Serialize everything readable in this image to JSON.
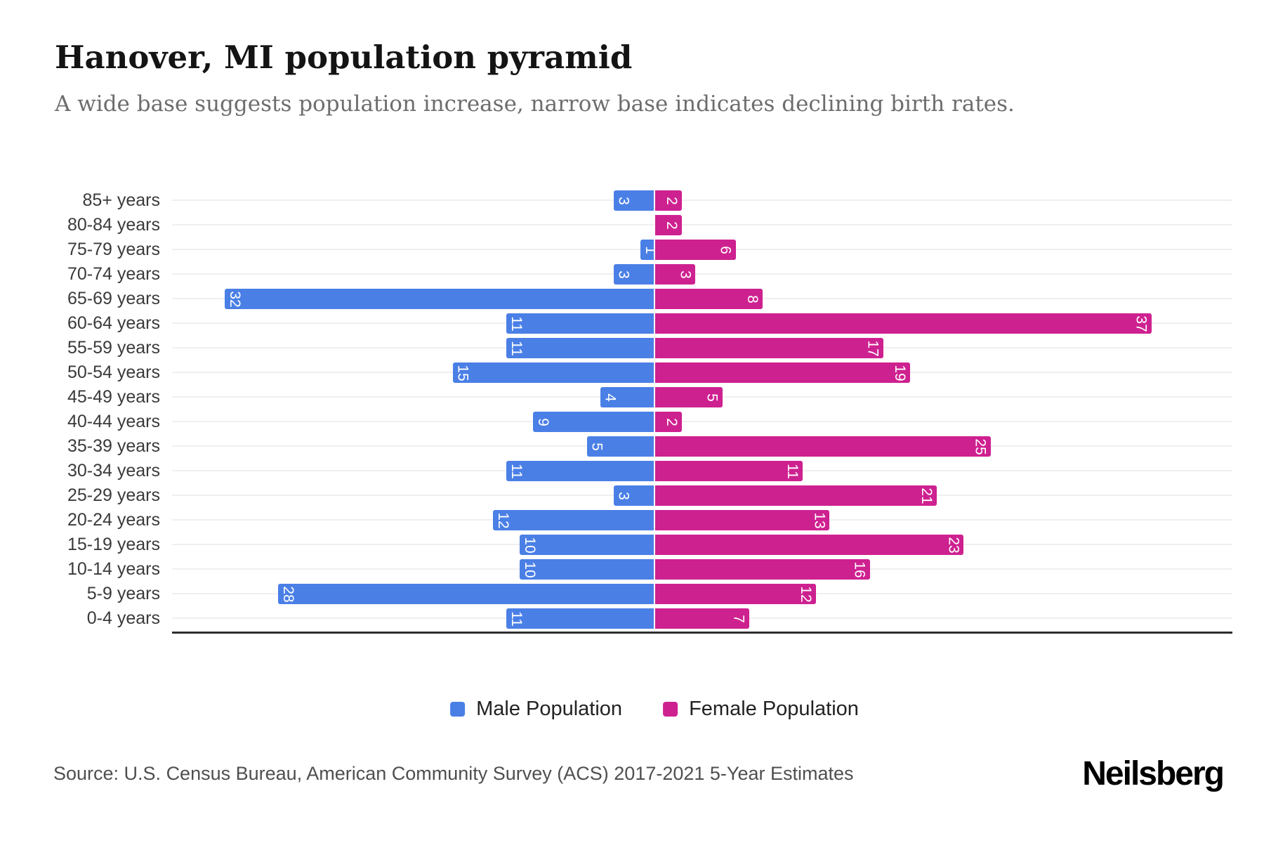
{
  "header": {
    "title": "Hanover, MI population pyramid",
    "subtitle": "A wide base suggests population increase, narrow base indicates declining birth rates."
  },
  "chart_data": {
    "type": "bar",
    "variant": "population-pyramid-horizontal",
    "title": "Hanover, MI population pyramid",
    "xlabel": "",
    "ylabel": "",
    "grid": "horizontal-light",
    "value_labels": "white, rotated 90deg, at outer tip of each bar",
    "categories": [
      "85+ years",
      "80-84 years",
      "75-79 years",
      "70-74 years",
      "65-69 years",
      "60-64 years",
      "55-59 years",
      "50-54 years",
      "45-49 years",
      "40-44 years",
      "35-39 years",
      "30-34 years",
      "25-29 years",
      "20-24 years",
      "15-19 years",
      "10-14 years",
      "5-9 years",
      "0-4 years"
    ],
    "series": [
      {
        "name": "Male Population",
        "color": "#4a7fe6",
        "direction": "left",
        "values": [
          3,
          0,
          1,
          3,
          32,
          11,
          11,
          15,
          4,
          9,
          5,
          11,
          3,
          12,
          10,
          10,
          28,
          11
        ]
      },
      {
        "name": "Female Population",
        "color": "#ce2190",
        "direction": "right",
        "values": [
          2,
          2,
          6,
          3,
          8,
          37,
          17,
          19,
          5,
          2,
          25,
          11,
          21,
          13,
          23,
          16,
          12,
          7
        ]
      }
    ]
  },
  "legend": {
    "items": [
      {
        "label": "Male Population",
        "color": "#4a7fe6"
      },
      {
        "label": "Female Population",
        "color": "#ce2190"
      }
    ]
  },
  "footer": {
    "source": "Source: U.S. Census Bureau, American Community Survey (ACS) 2017-2021 5-Year Estimates",
    "brand": "Neilsberg"
  }
}
